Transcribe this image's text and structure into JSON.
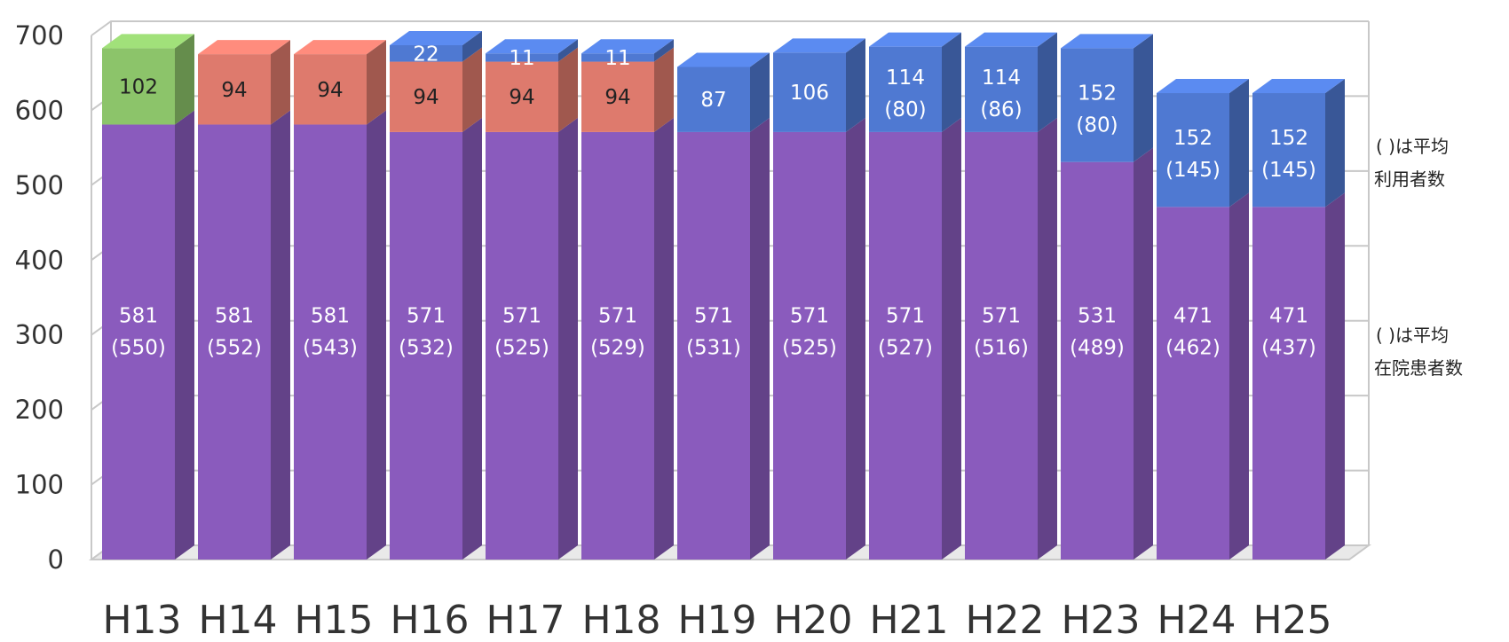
{
  "chart_data": {
    "type": "bar",
    "stacked": true,
    "three_d": true,
    "grid": true,
    "ylim": [
      0,
      700
    ],
    "yticks": [
      "0",
      "100",
      "200",
      "300",
      "400",
      "500",
      "600",
      "700"
    ],
    "categories": [
      "H13",
      "H14",
      "H15",
      "H16",
      "H17",
      "H18",
      "H19",
      "H20",
      "H21",
      "H22",
      "H23",
      "H24",
      "H25"
    ],
    "series": [
      {
        "color": "#8a5bbd",
        "values": [
          581,
          581,
          581,
          571,
          571,
          571,
          571,
          571,
          571,
          571,
          531,
          471,
          471
        ],
        "labels": [
          "581",
          "581",
          "581",
          "571",
          "571",
          "571",
          "571",
          "571",
          "571",
          "571",
          "531",
          "471",
          "471"
        ],
        "avg_labels": [
          "(550)",
          "(552)",
          "(543)",
          "(532)",
          "(525)",
          "(529)",
          "(531)",
          "(525)",
          "(527)",
          "(516)",
          "(489)",
          "(462)",
          "(437)"
        ]
      },
      {
        "color": "#8cc46a",
        "values": [
          102,
          0,
          0,
          0,
          0,
          0,
          0,
          0,
          0,
          0,
          0,
          0,
          0
        ],
        "labels": [
          "102",
          "",
          "",
          "",
          "",
          "",
          "",
          "",
          "",
          "",
          "",
          "",
          ""
        ]
      },
      {
        "color": "#de7a6d",
        "values": [
          0,
          94,
          94,
          94,
          94,
          94,
          0,
          0,
          0,
          0,
          0,
          0,
          0
        ],
        "labels": [
          "",
          "94",
          "94",
          "94",
          "94",
          "94",
          "",
          "",
          "",
          "",
          "",
          "",
          ""
        ]
      },
      {
        "color": "#4f79d2",
        "values": [
          0,
          0,
          0,
          22,
          11,
          11,
          87,
          106,
          114,
          114,
          152,
          152,
          152
        ],
        "labels": [
          "",
          "",
          "",
          "22",
          "11",
          "11",
          "87",
          "106",
          "114",
          "114",
          "152",
          "152",
          "152"
        ],
        "avg_labels": [
          "",
          "",
          "",
          "",
          "",
          "",
          "",
          "",
          "(80)",
          "(86)",
          "(80)",
          "(145)",
          "(145)"
        ]
      }
    ],
    "legend": [
      {
        "line1": "(   )は平均",
        "line2": "利用者数"
      },
      {
        "line1": "(   )は平均",
        "line2": "在院患者数"
      }
    ]
  }
}
